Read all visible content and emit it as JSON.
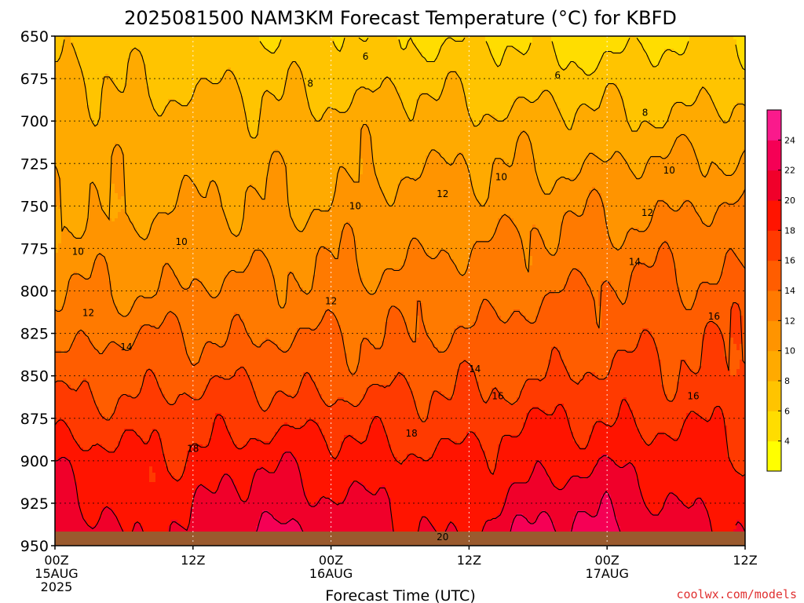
{
  "chart_data": {
    "type": "heatmap",
    "title": "2025081500 NAM3KM Forecast Temperature (°C) for KBFD",
    "xlabel": "Forecast Time (UTC)",
    "ylabel": "",
    "credit": "coolwx.com/models",
    "y_ticks": [
      "650",
      "675",
      "700",
      "725",
      "750",
      "775",
      "800",
      "825",
      "850",
      "875",
      "900",
      "925",
      "950"
    ],
    "y_values": [
      650,
      675,
      700,
      725,
      750,
      775,
      800,
      825,
      850,
      875,
      900,
      925,
      950
    ],
    "x_ticks": [
      {
        "hour": 0,
        "line1": "00Z",
        "line2": "15AUG",
        "line3": "2025"
      },
      {
        "hour": 12,
        "line1": "12Z",
        "line2": "",
        "line3": ""
      },
      {
        "hour": 24,
        "line1": "00Z",
        "line2": "16AUG",
        "line3": ""
      },
      {
        "hour": 36,
        "line1": "12Z",
        "line2": "",
        "line3": ""
      },
      {
        "hour": 48,
        "line1": "00Z",
        "line2": "17AUG",
        "line3": ""
      },
      {
        "hour": 60,
        "line1": "12Z",
        "line2": "",
        "line3": ""
      }
    ],
    "xlim": [
      0,
      60
    ],
    "ylim": [
      950,
      650
    ],
    "grid": true,
    "colorbar": {
      "labels": [
        "4",
        "6",
        "8",
        "10",
        "12",
        "14",
        "16",
        "18",
        "20",
        "22",
        "24"
      ],
      "levels": [
        2,
        4,
        6,
        8,
        10,
        12,
        14,
        16,
        18,
        20,
        22,
        24,
        26
      ],
      "colors": [
        "#ffff00",
        "#ffdd00",
        "#ffc400",
        "#ffaa00",
        "#ff9400",
        "#ff7a00",
        "#ff5d00",
        "#ff3a00",
        "#ff1400",
        "#f0002a",
        "#f50055",
        "#fa1a8c"
      ]
    },
    "contour_labels": [
      {
        "text": "6",
        "hour": 27,
        "p": 662
      },
      {
        "text": "6",
        "hour": 43.7,
        "p": 673
      },
      {
        "text": "8",
        "hour": 22.2,
        "p": 678
      },
      {
        "text": "8",
        "hour": 51.3,
        "p": 695
      },
      {
        "text": "10",
        "hour": 2.0,
        "p": 777
      },
      {
        "text": "10",
        "hour": 11.0,
        "p": 771
      },
      {
        "text": "10",
        "hour": 26.1,
        "p": 750
      },
      {
        "text": "10",
        "hour": 38.8,
        "p": 733
      },
      {
        "text": "10",
        "hour": 53.4,
        "p": 729
      },
      {
        "text": "12",
        "hour": 2.9,
        "p": 813
      },
      {
        "text": "12",
        "hour": 24.0,
        "p": 806
      },
      {
        "text": "12",
        "hour": 33.7,
        "p": 743
      },
      {
        "text": "12",
        "hour": 51.5,
        "p": 754
      },
      {
        "text": "14",
        "hour": 6.2,
        "p": 833
      },
      {
        "text": "14",
        "hour": 36.5,
        "p": 846
      },
      {
        "text": "14",
        "hour": 50.4,
        "p": 783
      },
      {
        "text": "16",
        "hour": 38.5,
        "p": 862
      },
      {
        "text": "16",
        "hour": 55.5,
        "p": 862
      },
      {
        "text": "16",
        "hour": 57.3,
        "p": 815
      },
      {
        "text": "18",
        "hour": 12.0,
        "p": 893
      },
      {
        "text": "18",
        "hour": 31.0,
        "p": 884
      },
      {
        "text": "20",
        "hour": 33.7,
        "p": 945
      }
    ],
    "profile": [
      {
        "hour": 0,
        "t650": 7.5,
        "t700": 9.2,
        "t750": 10.0,
        "t800": 11.8,
        "t850": 14.8,
        "t900": 19.8,
        "t950": 22.5
      },
      {
        "hour": 6,
        "t650": 6.8,
        "t700": 8.8,
        "t750": 9.6,
        "t800": 12.0,
        "t850": 15.5,
        "t900": 18.2,
        "t950": 20.0
      },
      {
        "hour": 12,
        "t650": 6.6,
        "t700": 8.9,
        "t750": 10.0,
        "t800": 12.3,
        "t850": 15.6,
        "t900": 18.5,
        "t950": 20.2
      },
      {
        "hour": 18,
        "t650": 6.3,
        "t700": 8.7,
        "t750": 9.9,
        "t800": 12.5,
        "t850": 15.4,
        "t900": 19.6,
        "t950": 23.2
      },
      {
        "hour": 24,
        "t650": 6.2,
        "t700": 8.8,
        "t750": 10.4,
        "t800": 12.6,
        "t850": 15.2,
        "t900": 19.1,
        "t950": 22.0
      },
      {
        "hour": 30,
        "t650": 6.0,
        "t700": 8.9,
        "t750": 10.7,
        "t800": 12.8,
        "t850": 15.3,
        "t900": 18.7,
        "t950": 20.5
      },
      {
        "hour": 36,
        "t650": 5.8,
        "t700": 8.7,
        "t750": 10.8,
        "t800": 13.0,
        "t850": 15.6,
        "t900": 18.2,
        "t950": 20.0
      },
      {
        "hour": 42,
        "t650": 5.5,
        "t700": 8.6,
        "t750": 11.2,
        "t800": 13.7,
        "t850": 16.0,
        "t900": 19.4,
        "t950": 23.0
      },
      {
        "hour": 48,
        "t650": 5.3,
        "t700": 8.4,
        "t750": 11.6,
        "t800": 14.2,
        "t850": 16.3,
        "t900": 19.6,
        "t950": 23.3
      },
      {
        "hour": 54,
        "t650": 5.6,
        "t700": 8.5,
        "t750": 11.9,
        "t800": 14.5,
        "t850": 16.4,
        "t900": 18.8,
        "t950": 21.0
      },
      {
        "hour": 60,
        "t650": 6.0,
        "t700": 8.6,
        "t750": 12.2,
        "t800": 14.8,
        "t850": 16.5,
        "t900": 18.4,
        "t950": 20.0
      }
    ],
    "terrain_color": "#9a5a2e"
  }
}
